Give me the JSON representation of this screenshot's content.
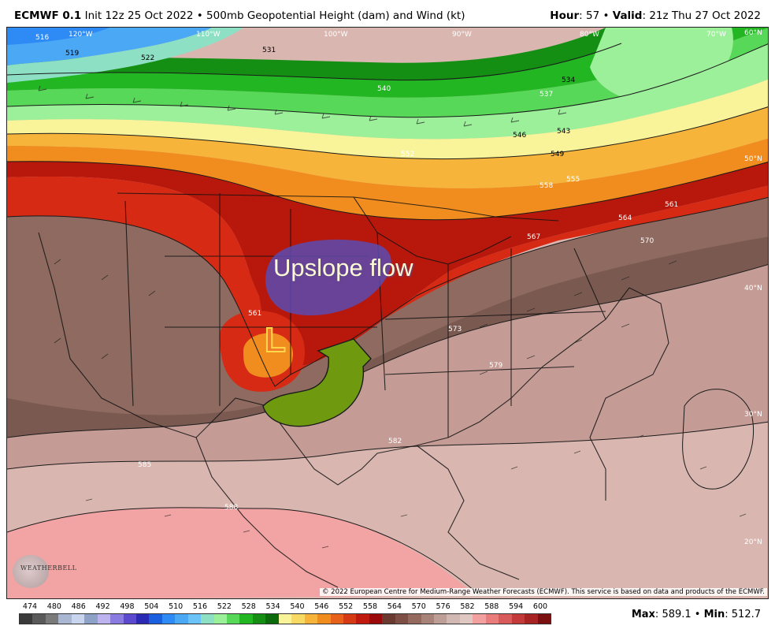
{
  "header": {
    "model": "ECMWF 0.1",
    "init": "Init 12z 25 Oct 2022",
    "product": "500mb Geopotential Height (dam) and Wind (kt)",
    "hour_label": "Hour",
    "hour_value": "57",
    "valid_label": "Valid",
    "valid_value": "21z Thu 27 Oct 2022"
  },
  "annotations": {
    "upslope_text": "Upslope flow",
    "low_letter": "L"
  },
  "contour_labels": [
    "516",
    "519",
    "522",
    "531",
    "534",
    "537",
    "540",
    "543",
    "546",
    "549",
    "552",
    "555",
    "558",
    "561",
    "564",
    "567",
    "570",
    "573",
    "579",
    "582",
    "585",
    "588",
    "561"
  ],
  "lat_labels": [
    "60°N",
    "50°N",
    "40°N",
    "30°N",
    "20°N"
  ],
  "lon_labels": [
    "120°W",
    "110°W",
    "100°W",
    "90°W",
    "80°W",
    "70°W"
  ],
  "logo_text": "WEATHERBELL",
  "copyright": "© 2022 European Centre for Medium-Range Weather Forecasts (ECMWF). This service is based on data and products of the ECMWF.",
  "scale": {
    "values": [
      "474",
      "480",
      "486",
      "492",
      "498",
      "504",
      "510",
      "516",
      "522",
      "528",
      "534",
      "540",
      "546",
      "552",
      "558",
      "564",
      "570",
      "576",
      "582",
      "588",
      "594",
      "600"
    ],
    "colors": [
      "#3a3a3a",
      "#5a5a5a",
      "#7a7a7a",
      "#a9b7d2",
      "#c9d5ee",
      "#8ea2c8",
      "#bdb3ef",
      "#8a7be0",
      "#5b4ad0",
      "#2a2ab5",
      "#1a5fe0",
      "#2e8af5",
      "#4aa8f5",
      "#6cc3f7",
      "#8ee0c5",
      "#9cf09a",
      "#58d858",
      "#22b622",
      "#148f14",
      "#0c6a0c",
      "#f9f49a",
      "#f8d964",
      "#f6b43a",
      "#f08d1e",
      "#e8611a",
      "#d53a14",
      "#c01a0e",
      "#9a0a0a",
      "#6a3a30",
      "#7e5045",
      "#946a5e",
      "#a8837a",
      "#bd9f98",
      "#d2b8b2",
      "#e0c8c2",
      "#f2a0a0",
      "#ea7c7c",
      "#d85a5a",
      "#c43a3a",
      "#a82424",
      "#7a1010"
    ],
    "max_label": "Max",
    "max_value": "589.1",
    "min_label": "Min",
    "min_value": "512.7"
  },
  "colors": {
    "arrow_green": "#6f9a10",
    "blob_purple": "#5a4bb0",
    "low_orange": "#f07a2a"
  }
}
